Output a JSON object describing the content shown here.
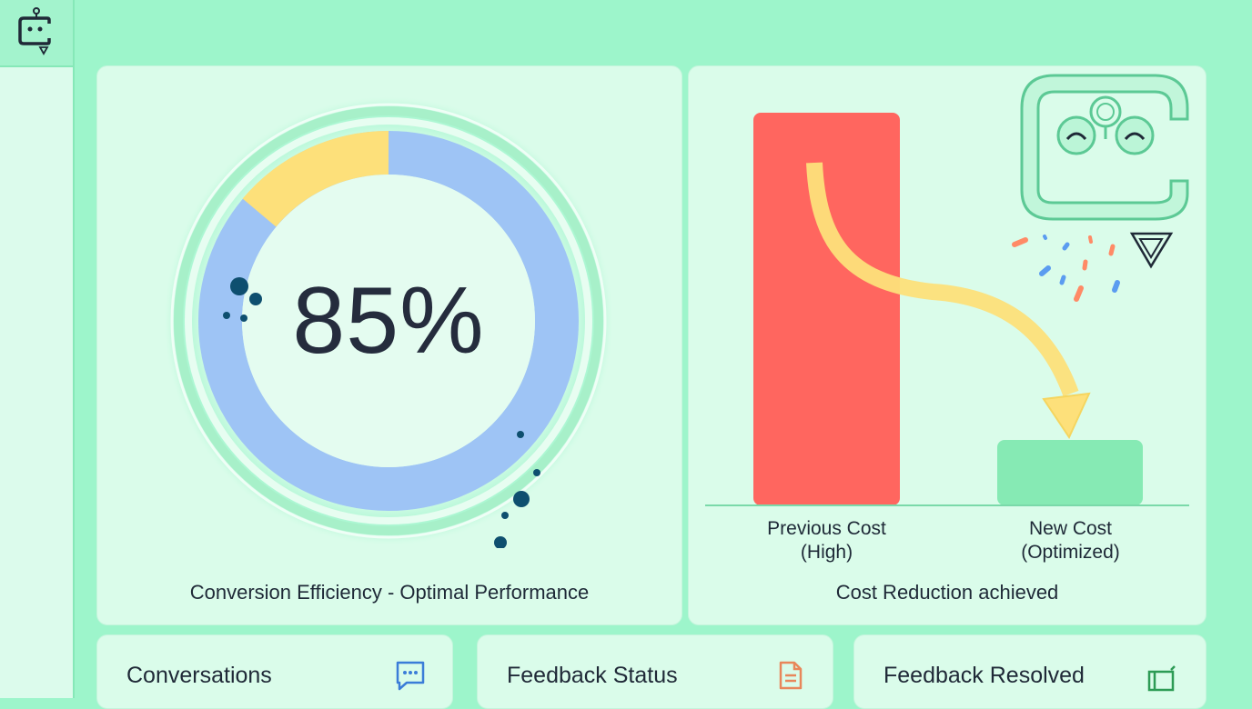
{
  "dashboard": {
    "efficiency": {
      "value": "85%",
      "caption": "Conversion Efficiency - Optimal Performance"
    },
    "cost": {
      "caption": "Cost Reduction achieved",
      "bars": [
        {
          "label_line1": "Previous Cost",
          "label_line2": "(High)",
          "color": "#ff665f"
        },
        {
          "label_line1": "New Cost",
          "label_line2": "(Optimized)",
          "color": "#86eab4"
        }
      ]
    }
  },
  "cards": [
    {
      "title": "Conversations",
      "icon": "chat-icon"
    },
    {
      "title": "Feedback Status",
      "icon": "document-icon"
    },
    {
      "title": "Feedback Resolved",
      "icon": "folder-icon"
    }
  ],
  "colors": {
    "background": "#9df5cb",
    "panel": "#dafcea",
    "ring_blue": "#9ec4f5",
    "ring_yellow": "#fde07a",
    "accent_green": "#5cc995",
    "cost_high": "#ff665f",
    "cost_new": "#86eab4",
    "arrow": "#fde07a"
  },
  "chart_data": {
    "type": "bar",
    "categories": [
      "Previous Cost (High)",
      "New Cost (Optimized)"
    ],
    "values": [
      100,
      17
    ],
    "title": "Cost Reduction achieved"
  }
}
